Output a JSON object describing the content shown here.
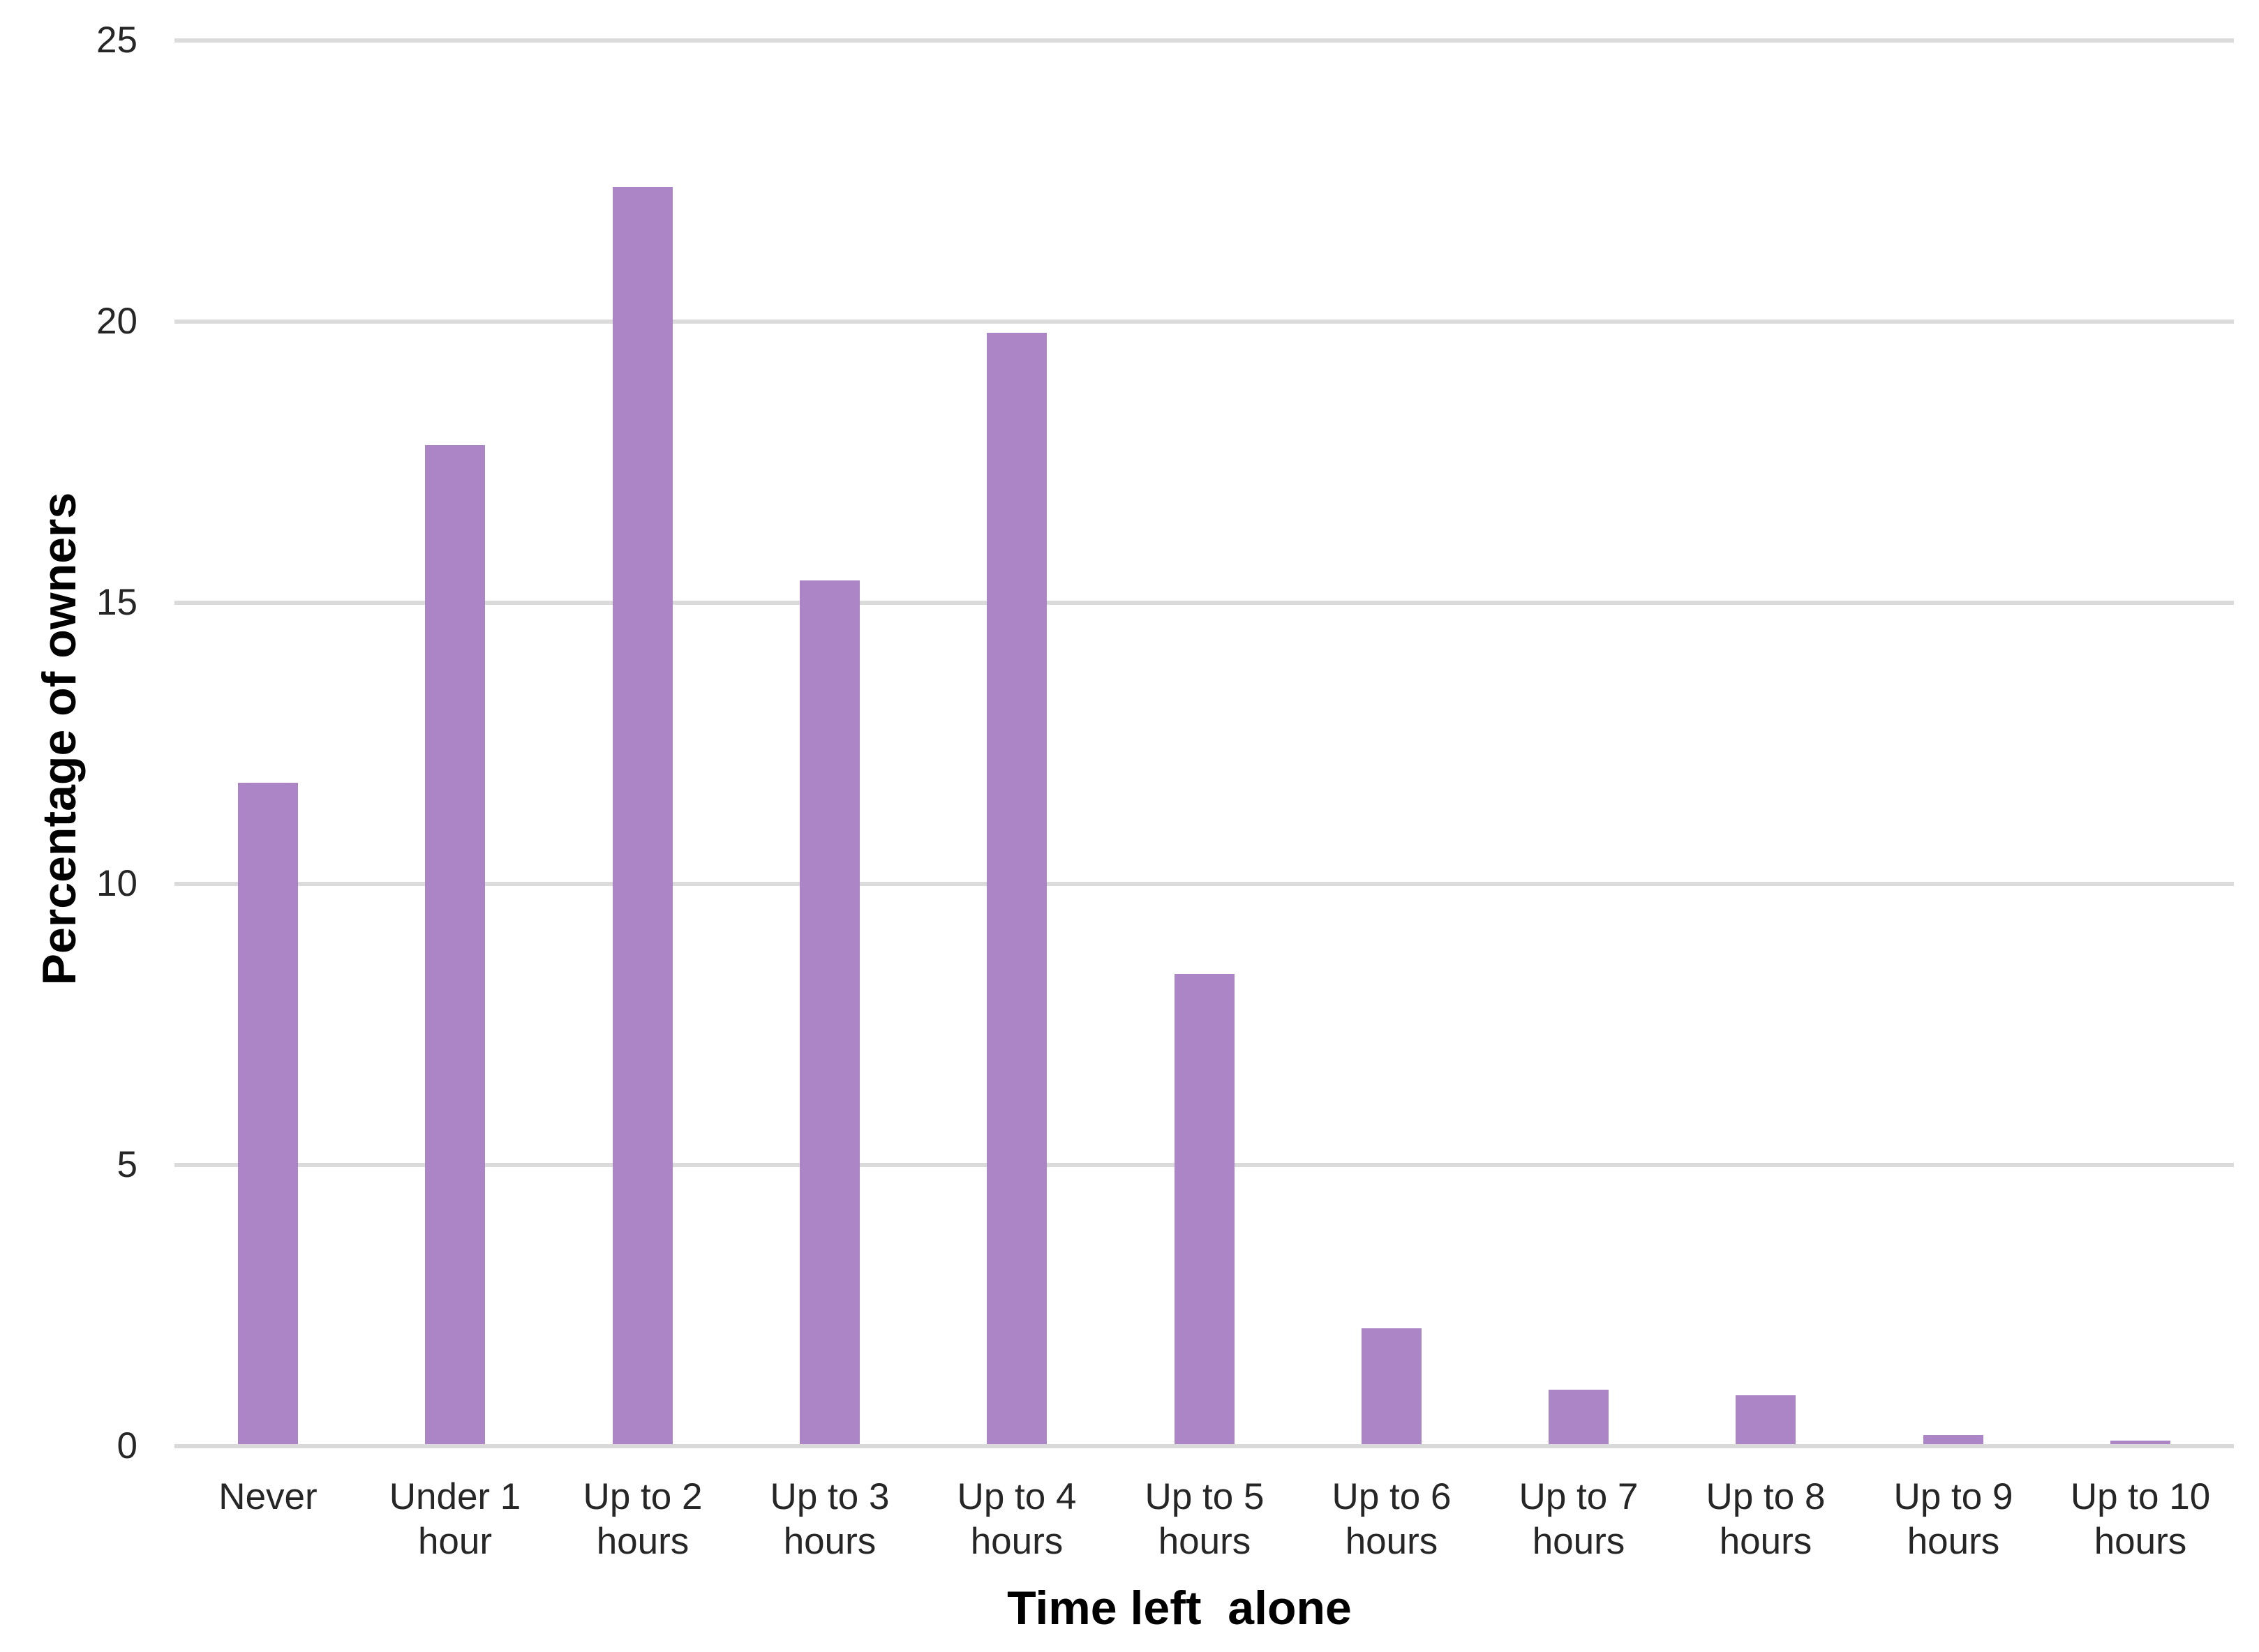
{
  "chart_data": {
    "type": "bar",
    "title": "",
    "xlabel": "Time left  alone",
    "ylabel": "Percentage of owners",
    "categories": [
      "Never",
      "Under 1 hour",
      "Up to 2 hours",
      "Up to 3 hours",
      "Up to 4 hours",
      "Up to 5 hours",
      "Up to 6 hours",
      "Up to 7 hours",
      "Up to 8 hours",
      "Up to 9 hours",
      "Up to 10 hours"
    ],
    "category_lines": [
      [
        "Never"
      ],
      [
        "Under 1",
        "hour"
      ],
      [
        "Up to 2",
        "hours"
      ],
      [
        "Up to 3",
        "hours"
      ],
      [
        "Up to 4",
        "hours"
      ],
      [
        "Up to 5",
        "hours"
      ],
      [
        "Up to 6",
        "hours"
      ],
      [
        "Up to 7",
        "hours"
      ],
      [
        "Up to 8",
        "hours"
      ],
      [
        "Up to 9",
        "hours"
      ],
      [
        "Up to 10",
        "hours"
      ]
    ],
    "values": [
      11.8,
      17.8,
      22.4,
      15.4,
      19.8,
      8.4,
      2.1,
      1.0,
      0.9,
      0.2,
      0.1
    ],
    "yticks": [
      0,
      5,
      10,
      15,
      20,
      25
    ],
    "ylim": [
      0,
      25
    ],
    "grid": true,
    "legend": false,
    "bar_gap_note": "single series, plain bars",
    "colors": {
      "bar": "#AC85C7",
      "gridline": "#DBDBDB",
      "axis_line": "#D9D9D9",
      "tick_label": "#262626",
      "axis_title": "#000000",
      "background": "#FFFFFF"
    }
  }
}
